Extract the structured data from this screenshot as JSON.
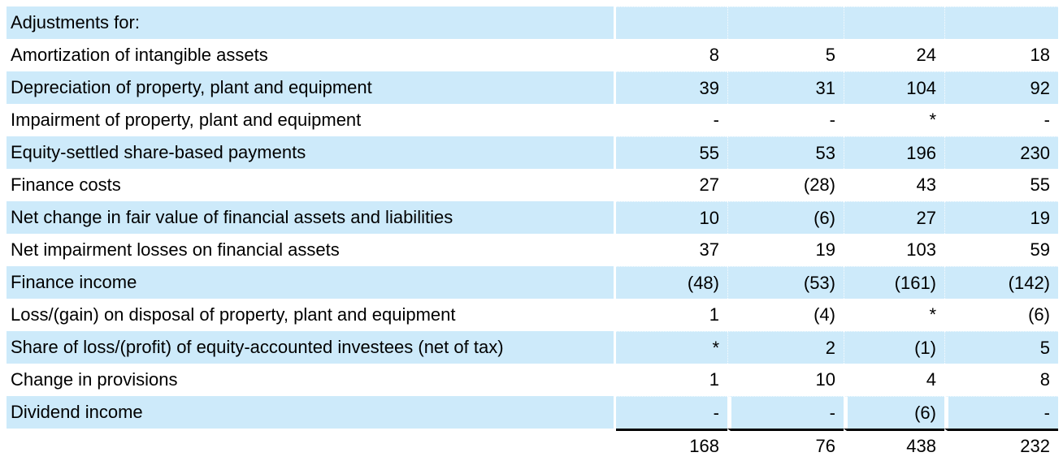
{
  "colors": {
    "row_highlight": "#cdeafa",
    "text": "#000000",
    "total_rule": "#000000",
    "background": "#ffffff"
  },
  "table": {
    "column_count": 4,
    "rows": [
      {
        "type": "section",
        "label": "Adjustments for:",
        "values": [
          "",
          "",
          "",
          ""
        ]
      },
      {
        "type": "item",
        "label": "Amortization of intangible assets",
        "values": [
          "8",
          "5",
          "24",
          "18"
        ]
      },
      {
        "type": "item",
        "label": "Depreciation of property, plant and equipment",
        "values": [
          "39",
          "31",
          "104",
          "92"
        ]
      },
      {
        "type": "item",
        "label": "Impairment of property, plant and equipment",
        "values": [
          "-",
          "-",
          "*",
          "-"
        ]
      },
      {
        "type": "item",
        "label": "Equity-settled share-based payments",
        "values": [
          "55",
          "53",
          "196",
          "230"
        ]
      },
      {
        "type": "item",
        "label": "Finance costs",
        "values": [
          "27",
          "(28)",
          "43",
          "55"
        ]
      },
      {
        "type": "item",
        "label": "Net change in fair value of financial assets and liabilities",
        "values": [
          "10",
          "(6)",
          "27",
          "19"
        ]
      },
      {
        "type": "item",
        "label": "Net impairment losses on financial assets",
        "values": [
          "37",
          "19",
          "103",
          "59"
        ]
      },
      {
        "type": "item",
        "label": "Finance income",
        "values": [
          "(48)",
          "(53)",
          "(161)",
          "(142)"
        ]
      },
      {
        "type": "item",
        "label": "Loss/(gain) on disposal of property, plant and equipment",
        "values": [
          "1",
          "(4)",
          "*",
          "(6)"
        ]
      },
      {
        "type": "item",
        "label": "Share of loss/(profit) of equity-accounted investees (net of tax)",
        "values": [
          "*",
          "2",
          "(1)",
          "5"
        ]
      },
      {
        "type": "item",
        "label": "Change in provisions",
        "values": [
          "1",
          "10",
          "4",
          "8"
        ]
      },
      {
        "type": "item",
        "label": "Dividend income",
        "values": [
          "-",
          "-",
          "(6)",
          "-"
        ],
        "wide_gaps": true
      },
      {
        "type": "total",
        "label": "",
        "values": [
          "168",
          "76",
          "438",
          "232"
        ]
      }
    ]
  }
}
